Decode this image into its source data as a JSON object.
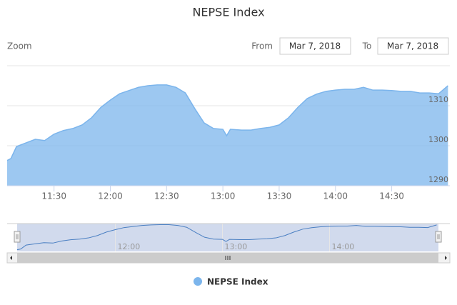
{
  "chart_data": {
    "type": "area",
    "title": "NEPSE Index",
    "zoom_label": "Zoom",
    "from_label": "From",
    "from_date": "Mar 7, 2018",
    "to_label": "To",
    "to_date": "Mar 7, 2018",
    "x": [
      "11:05",
      "11:07",
      "11:10",
      "11:15",
      "11:20",
      "11:25",
      "11:30",
      "11:35",
      "11:40",
      "11:45",
      "11:50",
      "11:55",
      "12:00",
      "12:05",
      "12:10",
      "12:15",
      "12:20",
      "12:25",
      "12:30",
      "12:35",
      "12:40",
      "12:45",
      "12:50",
      "12:55",
      "13:00",
      "13:02",
      "13:04",
      "13:10",
      "13:15",
      "13:20",
      "13:25",
      "13:30",
      "13:35",
      "13:40",
      "13:45",
      "13:50",
      "13:55",
      "14:00",
      "14:05",
      "14:10",
      "14:15",
      "14:20",
      "14:25",
      "14:30",
      "14:35",
      "14:40",
      "14:45",
      "14:50",
      "14:55",
      "15:00"
    ],
    "series": [
      {
        "name": "NEPSE Index",
        "color": "#7cb5ec",
        "values": [
          1296.3,
          1296.8,
          1299.8,
          1300.7,
          1301.6,
          1301.3,
          1302.9,
          1303.8,
          1304.3,
          1305.2,
          1307.0,
          1309.6,
          1311.4,
          1313.0,
          1313.8,
          1314.6,
          1315.0,
          1315.2,
          1315.2,
          1314.6,
          1313.2,
          1309.3,
          1305.7,
          1304.3,
          1304.1,
          1302.5,
          1304.1,
          1303.9,
          1303.9,
          1304.3,
          1304.6,
          1305.2,
          1307.0,
          1309.6,
          1311.8,
          1312.9,
          1313.6,
          1313.9,
          1314.1,
          1314.1,
          1314.6,
          1313.9,
          1313.9,
          1313.8,
          1313.6,
          1313.6,
          1313.2,
          1313.2,
          1313.0,
          1315.0
        ]
      }
    ],
    "xlim": [
      "11:05",
      "15:01"
    ],
    "xticks": [
      "11:30",
      "12:00",
      "12:30",
      "13:00",
      "13:30",
      "14:00",
      "14:30"
    ],
    "ylim": [
      1290,
      1320
    ],
    "yticks": [
      1290,
      1300,
      1310
    ],
    "grid": true,
    "navigator": {
      "xticks": [
        "12:00",
        "13:00",
        "14:00"
      ],
      "ylim": [
        1295,
        1316
      ]
    }
  }
}
